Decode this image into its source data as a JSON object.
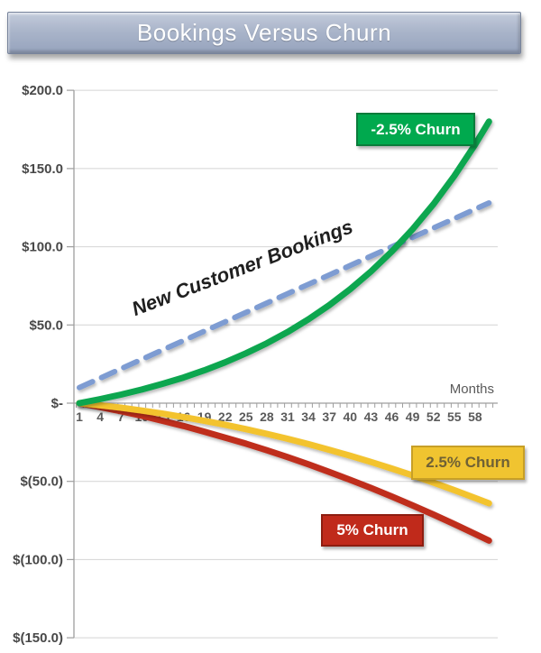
{
  "header": {
    "title": "Bookings Versus Churn"
  },
  "chart_data": {
    "type": "line",
    "title": "Bookings Versus Churn",
    "x_label": "Months",
    "x_range": [
      1,
      60
    ],
    "y_range": [
      -150,
      200
    ],
    "grid": true,
    "legend": "inline-label-boxes",
    "x_ticks": [
      1,
      4,
      7,
      10,
      13,
      16,
      19,
      22,
      25,
      28,
      31,
      34,
      37,
      40,
      43,
      46,
      49,
      52,
      55,
      58
    ],
    "y_ticks": [
      {
        "label": "$200.0",
        "value": 200
      },
      {
        "label": "$150.0",
        "value": 150
      },
      {
        "label": "$100.0",
        "value": 100
      },
      {
        "label": "$50.0",
        "value": 50
      },
      {
        "label": "$-",
        "value": 0
      },
      {
        "label": "$(50.0)",
        "value": -50
      },
      {
        "label": "$(100.0)",
        "value": -100
      },
      {
        "label": "$(150.0)",
        "value": -150
      }
    ],
    "colors": {
      "grid": "#d4d4d4",
      "axis": "#9e9e9e",
      "y_label": "#484848",
      "x_label": "#5a5a5a",
      "annotation": "#1f1f1f"
    },
    "series": [
      {
        "key": "churn-5pct",
        "name": "5% Churn",
        "label": "5% Churn",
        "color": "#bf2d1f",
        "style": "solid",
        "width": 7,
        "box": {
          "fill": "#c02a1b",
          "border": "#8d1d10",
          "text": "#ffffff"
        },
        "x": [
          1,
          4,
          7,
          10,
          13,
          16,
          19,
          22,
          25,
          28,
          31,
          34,
          37,
          40,
          43,
          46,
          49,
          52,
          55,
          58,
          60
        ],
        "values": [
          0,
          -2.5,
          -5.2,
          -8.1,
          -11.3,
          -14.6,
          -18.2,
          -22.0,
          -25.9,
          -30.1,
          -34.5,
          -39.1,
          -44.0,
          -49.0,
          -54.2,
          -59.7,
          -65.4,
          -71.2,
          -77.3,
          -83.6,
          -87.9
        ]
      },
      {
        "key": "churn-2-5pct",
        "name": "2.5% Churn",
        "label": "2.5% Churn",
        "color": "#f3c32f",
        "style": "solid",
        "width": 7,
        "box": {
          "fill": "#f0c430",
          "border": "#c79f27",
          "text": "#6f6135"
        },
        "x": [
          1,
          4,
          7,
          10,
          13,
          16,
          19,
          22,
          25,
          28,
          31,
          34,
          37,
          40,
          43,
          46,
          49,
          52,
          55,
          58,
          60
        ],
        "values": [
          0,
          -1.4,
          -2.9,
          -4.7,
          -6.7,
          -8.9,
          -11.3,
          -13.8,
          -16.6,
          -19.6,
          -22.8,
          -26.2,
          -29.8,
          -33.6,
          -37.6,
          -41.8,
          -46.2,
          -50.8,
          -55.6,
          -60.6,
          -64.0
        ]
      },
      {
        "key": "new-customer-bookings",
        "name": "New Customer Bookings",
        "label": "New Customer Bookings",
        "color": "#7e9cd2",
        "style": "dashed",
        "width": 6,
        "x": [
          1,
          4,
          7,
          10,
          13,
          16,
          19,
          22,
          25,
          28,
          31,
          34,
          37,
          40,
          43,
          46,
          49,
          52,
          55,
          58,
          60
        ],
        "values": [
          10,
          16,
          22,
          28,
          34,
          40,
          46,
          52,
          58,
          64,
          70,
          76,
          82,
          88,
          94,
          100,
          106,
          112,
          118,
          124,
          128
        ]
      },
      {
        "key": "churn-neg-2-5pct",
        "name": "-2.5% Churn",
        "label": "-2.5% Churn",
        "color": "#0aa64f",
        "style": "solid",
        "width": 7,
        "box": {
          "fill": "#00a94e",
          "border": "#0b7c3b",
          "text": "#ffffff"
        },
        "x": [
          1,
          4,
          7,
          10,
          13,
          16,
          19,
          22,
          25,
          28,
          31,
          34,
          37,
          40,
          43,
          46,
          49,
          52,
          55,
          58,
          60
        ],
        "values": [
          0,
          2.6,
          5.5,
          8.7,
          12.4,
          16.4,
          21.0,
          26.1,
          31.9,
          38.3,
          45.5,
          53.6,
          62.7,
          72.8,
          84.2,
          96.9,
          111.2,
          127.2,
          145.2,
          165.3,
          180.0
        ]
      }
    ]
  }
}
